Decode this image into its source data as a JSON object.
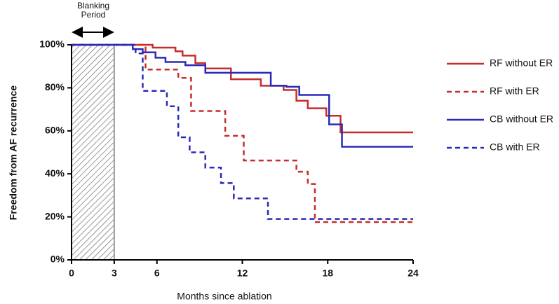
{
  "chart_data": {
    "type": "step",
    "x_label": "Months since ablation",
    "y_label": "Freedom from AF recurrence",
    "annotation": "Blanking Period",
    "shaded_region": [
      0,
      3
    ],
    "xlim": [
      0,
      24
    ],
    "xticks": [
      0,
      3,
      6,
      12,
      18,
      24
    ],
    "ylim": [
      0,
      100
    ],
    "yticks": [
      {
        "value": 0,
        "label": "0%"
      },
      {
        "value": 20,
        "label": "20%"
      },
      {
        "value": 40,
        "label": "40%"
      },
      {
        "value": 60,
        "label": "60%"
      },
      {
        "value": 80,
        "label": "80%"
      },
      {
        "value": 100,
        "label": "100%"
      }
    ],
    "legend": "right",
    "series": [
      {
        "name": "RF without ER",
        "color": "#c62d2d",
        "dash": false,
        "x": [
          0,
          5.7,
          7.3,
          7.8,
          8.7,
          9.4,
          11.2,
          13.3,
          14.9,
          15.8,
          16.6,
          17.9,
          18.9,
          24
        ],
        "values": [
          100,
          98.7,
          97,
          95,
          91.5,
          89,
          84,
          81,
          79,
          74,
          70.5,
          67,
          59.3,
          59.3
        ]
      },
      {
        "name": "RF with ER",
        "color": "#c62d2d",
        "dash": true,
        "x": [
          0,
          5.2,
          7.5,
          8.4,
          10.8,
          12.1,
          15.8,
          16.6,
          17.1,
          24
        ],
        "values": [
          100,
          88.5,
          84.6,
          69.2,
          57.7,
          46.2,
          41,
          35.3,
          17.6,
          17.6
        ]
      },
      {
        "name": "CB without ER",
        "color": "#2a2ab8",
        "dash": false,
        "x": [
          0,
          4.3,
          5,
          5.9,
          6.6,
          8,
          9.4,
          14,
          15.1,
          16,
          18.1,
          19,
          24
        ],
        "values": [
          100,
          98,
          96.5,
          94,
          92,
          90.5,
          87,
          81,
          80.5,
          76.7,
          63,
          52.6,
          52.6
        ]
      },
      {
        "name": "CB with ER",
        "color": "#2a2ab8",
        "dash": true,
        "x": [
          0,
          4.5,
          5,
          6.7,
          7.5,
          8.3,
          9.4,
          10.5,
          11.4,
          13.8,
          24
        ],
        "values": [
          100,
          96,
          78.6,
          71.4,
          57,
          50,
          42.9,
          35.7,
          28.6,
          19,
          19
        ]
      }
    ]
  }
}
